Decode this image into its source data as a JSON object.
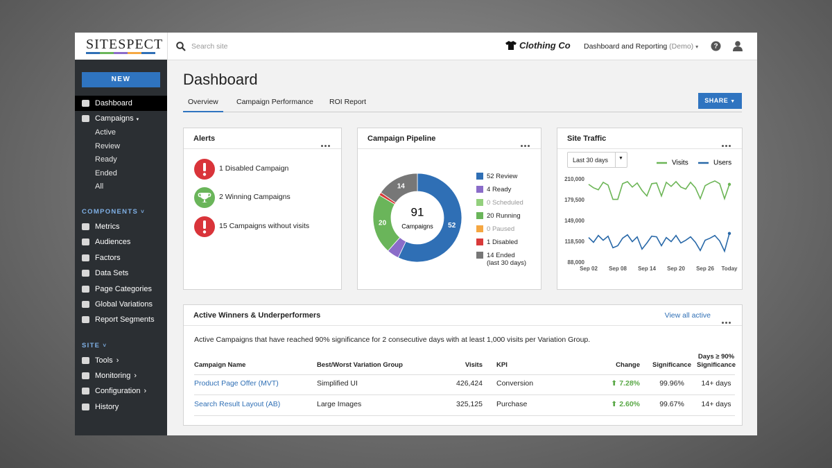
{
  "header": {
    "brand": "SITESPECT",
    "search_placeholder": "Search site",
    "client": "Clothing Co",
    "context": "Dashboard and Reporting",
    "context_note": "(Demo)"
  },
  "sidebar": {
    "new_button": "NEW",
    "items": [
      {
        "label": "Dashboard",
        "active": true
      },
      {
        "label": "Campaigns",
        "submenu": [
          "Active",
          "Review",
          "Ready",
          "Ended",
          "All"
        ]
      }
    ],
    "sections": [
      {
        "title": "COMPONENTS",
        "items": [
          {
            "label": "Metrics"
          },
          {
            "label": "Audiences"
          },
          {
            "label": "Factors"
          },
          {
            "label": "Data Sets"
          },
          {
            "label": "Page Categories"
          },
          {
            "label": "Global Variations"
          },
          {
            "label": "Report Segments"
          }
        ]
      },
      {
        "title": "SITE",
        "items": [
          {
            "label": "Tools",
            "more": true
          },
          {
            "label": "Monitoring",
            "more": true
          },
          {
            "label": "Configuration",
            "more": true
          },
          {
            "label": "History"
          }
        ]
      }
    ]
  },
  "page": {
    "title": "Dashboard",
    "tabs": [
      "Overview",
      "Campaign Performance",
      "ROI Report"
    ],
    "active_tab": 0,
    "share": "SHARE"
  },
  "alerts": {
    "title": "Alerts",
    "items": [
      {
        "text": "1 Disabled Campaign",
        "status": "error"
      },
      {
        "text": "2 Winning Campaigns",
        "status": "success"
      },
      {
        "text": "15 Campaigns without visits",
        "status": "error"
      }
    ]
  },
  "chart_data": [
    {
      "type": "donut",
      "title": "Campaign Pipeline",
      "total": 91,
      "total_label": "Campaigns",
      "categories": [
        "Review",
        "Ready",
        "Scheduled",
        "Running",
        "Paused",
        "Disabled",
        "Ended (last 30 days)"
      ],
      "values": [
        52,
        4,
        0,
        20,
        0,
        1,
        14
      ],
      "colors": [
        "#2f6fb5",
        "#8a6cc9",
        "#93d07d",
        "#6ab55a",
        "#f5a742",
        "#d93a3a",
        "#777777"
      ]
    },
    {
      "type": "line",
      "title": "Site Traffic",
      "range_selector": "Last 30 days",
      "categories": [
        "Sep 02",
        null,
        null,
        null,
        null,
        null,
        "Sep 08",
        null,
        null,
        null,
        null,
        null,
        "Sep 14",
        null,
        null,
        null,
        null,
        null,
        "Sep 20",
        null,
        null,
        null,
        null,
        null,
        "Sep 26",
        null,
        null,
        null,
        null,
        "Today"
      ],
      "series": [
        {
          "name": "Visits",
          "color": "#6cb556",
          "values": [
            203000,
            198000,
            195000,
            206000,
            202000,
            181000,
            181000,
            204000,
            207000,
            199000,
            205000,
            194000,
            186000,
            204000,
            205000,
            186000,
            206000,
            200000,
            207000,
            199000,
            196000,
            206000,
            198000,
            182000,
            201000,
            205000,
            208000,
            204000,
            182000,
            203000
          ]
        },
        {
          "name": "Users",
          "color": "#2868a8",
          "values": [
            125000,
            118000,
            128000,
            121000,
            127000,
            110000,
            113000,
            124000,
            129000,
            119000,
            126000,
            108000,
            117000,
            127000,
            126000,
            113000,
            125000,
            119000,
            128000,
            117000,
            121000,
            126000,
            118000,
            106000,
            121000,
            124000,
            128000,
            120000,
            105000,
            131000
          ]
        }
      ],
      "ylim": [
        88000,
        210000
      ],
      "yticks": [
        {
          "value": 88000,
          "label": "88,000"
        },
        {
          "value": 118500,
          "label": "118,500"
        },
        {
          "value": 149000,
          "label": "149,000"
        },
        {
          "value": 179500,
          "label": "179,500"
        },
        {
          "value": 210000,
          "label": "210,000"
        }
      ],
      "grid": false,
      "legend": "top-right"
    }
  ],
  "table": {
    "title": "Active Winners & Underperformers",
    "link": "View all active",
    "description": "Active Campaigns that have reached 90% significance for 2 consecutive days with at least 1,000 visits per Variation Group.",
    "columns": [
      "Campaign Name",
      "Best/Worst Variation Group",
      "Visits",
      "KPI",
      "Change",
      "Significance",
      "Days ≥ 90% Significance"
    ],
    "rows": [
      [
        "Product Page Offer (MVT)",
        "Simplified UI",
        "426,424",
        "Conversion",
        "7.28%",
        "99.96%",
        "14+ days"
      ],
      [
        "Search Result Layout (AB)",
        "Large Images",
        "325,125",
        "Purchase",
        "2.60%",
        "99.67%",
        "14+ days"
      ]
    ]
  }
}
